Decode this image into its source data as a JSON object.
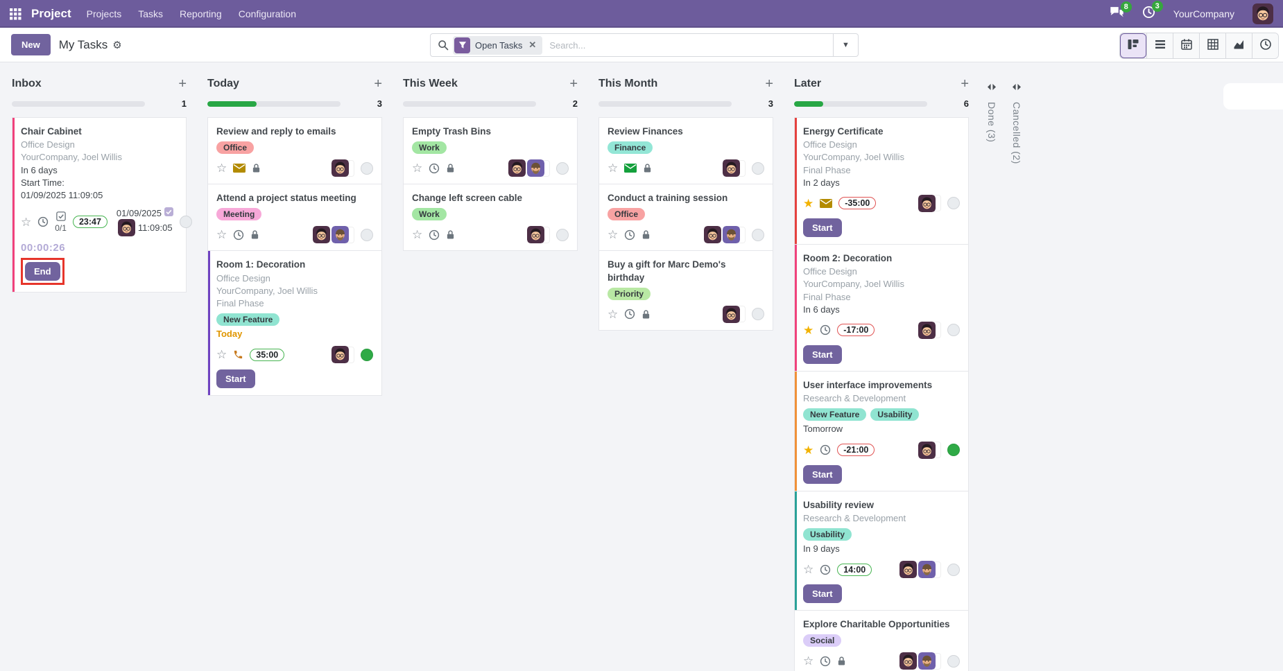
{
  "navbar": {
    "app_name": "Project",
    "menu_items": [
      "Projects",
      "Tasks",
      "Reporting",
      "Configuration"
    ],
    "message_count": "8",
    "activity_count": "3",
    "company": "YourCompany"
  },
  "control": {
    "new_label": "New",
    "title": "My Tasks",
    "search_placeholder": "Search...",
    "filter_label": "Open Tasks",
    "views": [
      {
        "name": "kanban",
        "active": true
      },
      {
        "name": "list",
        "active": false
      },
      {
        "name": "calendar",
        "active": false
      },
      {
        "name": "pivot",
        "active": false
      },
      {
        "name": "graph",
        "active": false
      },
      {
        "name": "activity",
        "active": false
      }
    ]
  },
  "colors": {
    "navbar_bg": "#6d5c9c",
    "primary_button": "#71639e",
    "progress_green": "#28a745",
    "badge_green_border": "#46b450",
    "badge_red_border": "#e05252",
    "annotation_red": "#e6352b",
    "status_green": "#2faa46",
    "timer_text": "#b3aad6",
    "today_text": "#e09600"
  },
  "board": {
    "columns": [
      {
        "name": "Inbox",
        "count": "1",
        "progress": 0,
        "cards": [
          {
            "title": "Chair Cabinet",
            "accent": "#f0427c",
            "subtitle_lines": [
              "Office Design",
              "YourCompany, Joel Willis"
            ],
            "deadline_lines": [
              {
                "text": "In 6 days"
              },
              {
                "text": "Start Time:"
              },
              {
                "text": "01/09/2025 11:09:05"
              }
            ],
            "footer": {
              "star": "outline",
              "icons": [
                "clock"
              ],
              "checklist": "0/1",
              "badge": {
                "text": "23:47",
                "type": "green"
              },
              "datetime": {
                "date": "01/09/2025",
                "time": "11:09:05"
              },
              "avatars": [
                "glasses"
              ],
              "status": "gray"
            },
            "timer": "00:00:26",
            "button": {
              "label": "End",
              "annotated": true
            }
          }
        ]
      },
      {
        "name": "Today",
        "count": "3",
        "progress": 0.37,
        "cards": [
          {
            "title": "Review and reply to emails",
            "tags": [
              {
                "label": "Office",
                "bg": "#f8a2a2"
              }
            ],
            "footer": {
              "star": "outline",
              "icons": [
                "envelope:#b38b00",
                "lock"
              ],
              "avatars": [
                "glasses"
              ],
              "status": "gray"
            }
          },
          {
            "title": "Attend a project status meeting",
            "tags": [
              {
                "label": "Meeting",
                "bg": "#f7a8d8"
              }
            ],
            "footer": {
              "star": "outline",
              "icons": [
                "clock",
                "lock"
              ],
              "avatars": [
                "glasses",
                "beard"
              ],
              "status": "gray"
            }
          },
          {
            "title": "Room 1: Decoration",
            "accent": "#6f42c1",
            "subtitle_lines": [
              "Office Design",
              "YourCompany, Joel Willis",
              "Final Phase"
            ],
            "tags": [
              {
                "label": "New Feature",
                "bg": "#90e4d1"
              }
            ],
            "deadline_lines": [
              {
                "text": "Today",
                "color": "today"
              }
            ],
            "footer": {
              "star": "outline",
              "icons": [
                "phone:#c77a1e"
              ],
              "badge": {
                "text": "35:00",
                "type": "green"
              },
              "avatars": [
                "glasses"
              ],
              "status": "green"
            },
            "button": {
              "label": "Start"
            }
          }
        ]
      },
      {
        "name": "This Week",
        "count": "2",
        "progress": 0,
        "cards": [
          {
            "title": "Empty Trash Bins",
            "tags": [
              {
                "label": "Work",
                "bg": "#a3e6a3"
              }
            ],
            "footer": {
              "star": "outline",
              "icons": [
                "clock",
                "lock"
              ],
              "avatars": [
                "glasses",
                "beard"
              ],
              "status": "gray"
            }
          },
          {
            "title": "Change left screen cable",
            "tags": [
              {
                "label": "Work",
                "bg": "#a3e6a3"
              }
            ],
            "footer": {
              "star": "outline",
              "icons": [
                "clock",
                "lock"
              ],
              "avatars": [
                "glasses"
              ],
              "status": "gray"
            }
          }
        ]
      },
      {
        "name": "This Month",
        "count": "3",
        "progress": 0,
        "cards": [
          {
            "title": "Review Finances",
            "tags": [
              {
                "label": "Finance",
                "bg": "#93e6d6"
              }
            ],
            "footer": {
              "star": "outline",
              "icons": [
                "envelope:#14a03c",
                "lock"
              ],
              "avatars": [
                "glasses"
              ],
              "status": "gray"
            }
          },
          {
            "title": "Conduct a training session",
            "tags": [
              {
                "label": "Office",
                "bg": "#f8a2a2"
              }
            ],
            "footer": {
              "star": "outline",
              "icons": [
                "clock",
                "lock"
              ],
              "avatars": [
                "glasses",
                "beard"
              ],
              "status": "gray"
            }
          },
          {
            "title": "Buy a gift for Marc Demo's birthday",
            "tags": [
              {
                "label": "Priority",
                "bg": "#b9e8a4"
              }
            ],
            "footer": {
              "star": "outline",
              "icons": [
                "clock",
                "lock"
              ],
              "avatars": [
                "glasses"
              ],
              "status": "gray"
            }
          }
        ]
      },
      {
        "name": "Later",
        "count": "6",
        "progress": 0.22,
        "cards": [
          {
            "title": "Energy Certificate",
            "accent": "#e5413e",
            "subtitle_lines": [
              "Office Design",
              "YourCompany, Joel Willis",
              "Final Phase"
            ],
            "deadline_lines": [
              {
                "text": "In 2 days"
              }
            ],
            "footer": {
              "star": "gold",
              "icons": [
                "envelope:#b38b00"
              ],
              "badge": {
                "text": "-35:00",
                "type": "red"
              },
              "avatars": [
                "glasses"
              ],
              "status": "gray"
            },
            "button": {
              "label": "Start"
            }
          },
          {
            "title": "Room 2: Decoration",
            "accent": "#f0427c",
            "subtitle_lines": [
              "Office Design",
              "YourCompany, Joel Willis",
              "Final Phase"
            ],
            "deadline_lines": [
              {
                "text": "In 6 days"
              }
            ],
            "footer": {
              "star": "gold",
              "icons": [
                "clock"
              ],
              "badge": {
                "text": "-17:00",
                "type": "red"
              },
              "avatars": [
                "glasses"
              ],
              "status": "gray"
            },
            "button": {
              "label": "Start"
            }
          },
          {
            "title": "User interface improvements",
            "accent": "#f09138",
            "subtitle_lines": [
              "Research & Development"
            ],
            "tags": [
              {
                "label": "New Feature",
                "bg": "#90e4d1"
              },
              {
                "label": "Usability",
                "bg": "#90e4d1"
              }
            ],
            "deadline_lines": [
              {
                "text": "Tomorrow"
              }
            ],
            "footer": {
              "star": "gold",
              "icons": [
                "clock"
              ],
              "badge": {
                "text": "-21:00",
                "type": "red"
              },
              "avatars": [
                "glasses"
              ],
              "status": "green"
            },
            "button": {
              "label": "Start"
            }
          },
          {
            "title": "Usability review",
            "accent": "#2aa198",
            "subtitle_lines": [
              "Research & Development"
            ],
            "tags": [
              {
                "label": "Usability",
                "bg": "#90e4d1"
              }
            ],
            "deadline_lines": [
              {
                "text": "In 9 days"
              }
            ],
            "footer": {
              "star": "outline",
              "icons": [
                "clock"
              ],
              "badge": {
                "text": "14:00",
                "type": "green"
              },
              "avatars": [
                "glasses",
                "beard"
              ],
              "status": "gray"
            },
            "button": {
              "label": "Start"
            }
          },
          {
            "title": "Explore Charitable Opportunities",
            "tags": [
              {
                "label": "Social",
                "bg": "#dbcdf8"
              }
            ],
            "footer": {
              "star": "outline",
              "icons": [
                "clock",
                "lock"
              ],
              "avatars": [
                "glasses",
                "beard"
              ],
              "status": "gray"
            }
          }
        ]
      }
    ],
    "folded_columns": [
      {
        "label": "Done (3)"
      },
      {
        "label": "Cancelled (2)"
      }
    ]
  }
}
